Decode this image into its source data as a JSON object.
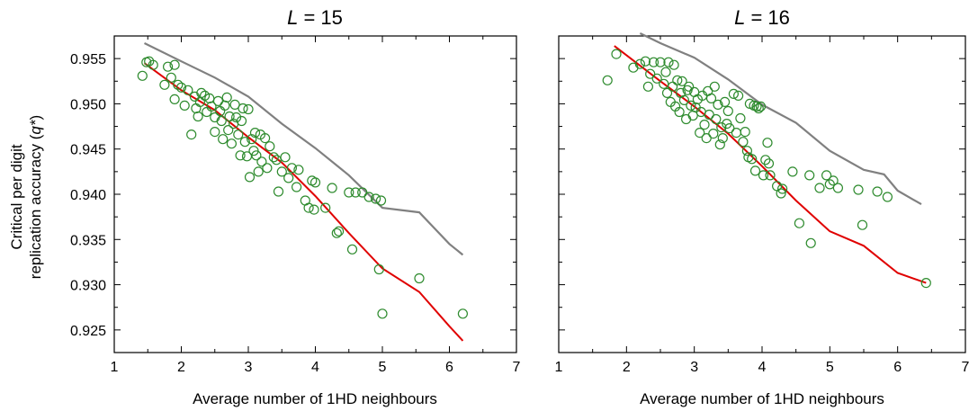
{
  "chart_data": [
    {
      "type": "scatter",
      "title_var": "L",
      "title_rest": " = 15",
      "xlabel": "Average number of 1HD neighbours",
      "ylabel_line1": "Critical per digit",
      "ylabel_line2": "replication accuracy (",
      "ylabel_var": "q*",
      "ylabel_close": ")",
      "xlim": [
        1,
        7
      ],
      "ylim": [
        0.9225,
        0.9575
      ],
      "x_ticks": [
        "1",
        "2",
        "3",
        "4",
        "5",
        "6",
        "7"
      ],
      "y_ticks": [
        "0.925",
        "0.930",
        "0.935",
        "0.940",
        "0.945",
        "0.950",
        "0.955"
      ],
      "colors": {
        "points": "#2e8b2e",
        "fit": "#e00000",
        "bound": "#808080"
      },
      "series": [
        {
          "marker": "open-circle",
          "points": [
            [
              1.42,
              0.9531
            ],
            [
              1.48,
              0.9546
            ],
            [
              1.52,
              0.9547
            ],
            [
              1.58,
              0.9543
            ],
            [
              1.75,
              0.9521
            ],
            [
              1.8,
              0.9541
            ],
            [
              1.85,
              0.9529
            ],
            [
              1.9,
              0.9543
            ],
            [
              1.95,
              0.9521
            ],
            [
              1.9,
              0.9505
            ],
            [
              2.0,
              0.9518
            ],
            [
              2.05,
              0.9498
            ],
            [
              2.1,
              0.9515
            ],
            [
              2.15,
              0.9466
            ],
            [
              2.2,
              0.9508
            ],
            [
              2.22,
              0.9495
            ],
            [
              2.25,
              0.9486
            ],
            [
              2.28,
              0.9502
            ],
            [
              2.3,
              0.9512
            ],
            [
              2.35,
              0.9509
            ],
            [
              2.38,
              0.9491
            ],
            [
              2.42,
              0.9506
            ],
            [
              2.45,
              0.9497
            ],
            [
              2.5,
              0.9485
            ],
            [
              2.5,
              0.9469
            ],
            [
              2.55,
              0.9503
            ],
            [
              2.58,
              0.9492
            ],
            [
              2.6,
              0.9481
            ],
            [
              2.62,
              0.9461
            ],
            [
              2.65,
              0.9498
            ],
            [
              2.68,
              0.9507
            ],
            [
              2.7,
              0.9471
            ],
            [
              2.72,
              0.9486
            ],
            [
              2.75,
              0.9456
            ],
            [
              2.78,
              0.9478
            ],
            [
              2.8,
              0.9499
            ],
            [
              2.82,
              0.9485
            ],
            [
              2.85,
              0.9466
            ],
            [
              2.88,
              0.9443
            ],
            [
              2.9,
              0.9481
            ],
            [
              2.92,
              0.9495
            ],
            [
              2.95,
              0.9458
            ],
            [
              2.98,
              0.9442
            ],
            [
              3.0,
              0.9494
            ],
            [
              3.02,
              0.9419
            ],
            [
              3.05,
              0.9461
            ],
            [
              3.08,
              0.9448
            ],
            [
              3.1,
              0.9468
            ],
            [
              3.12,
              0.9443
            ],
            [
              3.15,
              0.9425
            ],
            [
              3.18,
              0.9466
            ],
            [
              3.2,
              0.9436
            ],
            [
              3.25,
              0.9462
            ],
            [
              3.28,
              0.9429
            ],
            [
              3.32,
              0.9453
            ],
            [
              3.38,
              0.9441
            ],
            [
              3.42,
              0.9438
            ],
            [
              3.45,
              0.9403
            ],
            [
              3.5,
              0.9425
            ],
            [
              3.55,
              0.9441
            ],
            [
              3.6,
              0.9418
            ],
            [
              3.65,
              0.9429
            ],
            [
              3.72,
              0.9408
            ],
            [
              3.75,
              0.9427
            ],
            [
              3.85,
              0.9393
            ],
            [
              3.9,
              0.9385
            ],
            [
              3.95,
              0.9415
            ],
            [
              3.98,
              0.9383
            ],
            [
              4.0,
              0.9413
            ],
            [
              4.15,
              0.9385
            ],
            [
              4.25,
              0.9407
            ],
            [
              4.32,
              0.9357
            ],
            [
              4.35,
              0.9359
            ],
            [
              4.5,
              0.9402
            ],
            [
              4.55,
              0.9339
            ],
            [
              4.6,
              0.9402
            ],
            [
              4.7,
              0.9402
            ],
            [
              4.8,
              0.9397
            ],
            [
              4.9,
              0.9395
            ],
            [
              4.95,
              0.9317
            ],
            [
              4.98,
              0.9393
            ],
            [
              5.0,
              0.9268
            ],
            [
              5.55,
              0.9307
            ],
            [
              6.2,
              0.9268
            ]
          ]
        },
        {
          "marker": "line",
          "points": [
            [
              1.45,
              0.9545
            ],
            [
              2.0,
              0.9515
            ],
            [
              2.5,
              0.9493
            ],
            [
              3.0,
              0.9463
            ],
            [
              3.5,
              0.9435
            ],
            [
              4.0,
              0.9398
            ],
            [
              4.5,
              0.9357
            ],
            [
              5.0,
              0.9318
            ],
            [
              5.55,
              0.9292
            ],
            [
              6.0,
              0.9254
            ],
            [
              6.2,
              0.9238
            ]
          ]
        },
        {
          "marker": "line",
          "points": [
            [
              1.45,
              0.9567
            ],
            [
              2.0,
              0.9547
            ],
            [
              2.5,
              0.9529
            ],
            [
              3.0,
              0.9508
            ],
            [
              3.5,
              0.9478
            ],
            [
              4.0,
              0.9451
            ],
            [
              4.5,
              0.9421
            ],
            [
              5.0,
              0.9385
            ],
            [
              5.55,
              0.938
            ],
            [
              6.0,
              0.9345
            ],
            [
              6.2,
              0.9333
            ]
          ]
        }
      ]
    },
    {
      "type": "scatter",
      "title_var": "L",
      "title_rest": " = 16",
      "xlabel": "Average number of 1HD neighbours",
      "xlim": [
        1,
        7
      ],
      "ylim": [
        0.9225,
        0.9575
      ],
      "x_ticks": [
        "1",
        "2",
        "3",
        "4",
        "5",
        "6",
        "7"
      ],
      "colors": {
        "points": "#2e8b2e",
        "fit": "#e00000",
        "bound": "#808080"
      },
      "series": [
        {
          "marker": "open-circle",
          "points": [
            [
              1.72,
              0.9526
            ],
            [
              1.85,
              0.9555
            ],
            [
              2.1,
              0.954
            ],
            [
              2.2,
              0.9544
            ],
            [
              2.28,
              0.9547
            ],
            [
              2.32,
              0.9519
            ],
            [
              2.35,
              0.9533
            ],
            [
              2.4,
              0.9546
            ],
            [
              2.45,
              0.9528
            ],
            [
              2.5,
              0.9546
            ],
            [
              2.55,
              0.9522
            ],
            [
              2.58,
              0.9535
            ],
            [
              2.6,
              0.9512
            ],
            [
              2.62,
              0.9546
            ],
            [
              2.65,
              0.9502
            ],
            [
              2.68,
              0.9519
            ],
            [
              2.7,
              0.9543
            ],
            [
              2.72,
              0.9497
            ],
            [
              2.75,
              0.9526
            ],
            [
              2.78,
              0.9491
            ],
            [
              2.8,
              0.9512
            ],
            [
              2.82,
              0.9525
            ],
            [
              2.85,
              0.9504
            ],
            [
              2.88,
              0.9483
            ],
            [
              2.9,
              0.9515
            ],
            [
              2.92,
              0.9519
            ],
            [
              2.95,
              0.9498
            ],
            [
              2.98,
              0.9487
            ],
            [
              3.0,
              0.9513
            ],
            [
              3.02,
              0.9496
            ],
            [
              3.05,
              0.9505
            ],
            [
              3.08,
              0.9468
            ],
            [
              3.1,
              0.9491
            ],
            [
              3.12,
              0.9509
            ],
            [
              3.15,
              0.9477
            ],
            [
              3.18,
              0.9462
            ],
            [
              3.2,
              0.9514
            ],
            [
              3.22,
              0.9488
            ],
            [
              3.25,
              0.9506
            ],
            [
              3.28,
              0.9467
            ],
            [
              3.3,
              0.9519
            ],
            [
              3.32,
              0.9483
            ],
            [
              3.35,
              0.9499
            ],
            [
              3.38,
              0.9455
            ],
            [
              3.4,
              0.9474
            ],
            [
              3.42,
              0.9462
            ],
            [
              3.45,
              0.9502
            ],
            [
              3.48,
              0.9478
            ],
            [
              3.5,
              0.9492
            ],
            [
              3.52,
              0.9473
            ],
            [
              3.58,
              0.9511
            ],
            [
              3.62,
              0.9468
            ],
            [
              3.65,
              0.9509
            ],
            [
              3.68,
              0.9484
            ],
            [
              3.72,
              0.9458
            ],
            [
              3.75,
              0.9469
            ],
            [
              3.78,
              0.9448
            ],
            [
              3.8,
              0.9441
            ],
            [
              3.82,
              0.95
            ],
            [
              3.85,
              0.9439
            ],
            [
              3.88,
              0.9498
            ],
            [
              3.9,
              0.9426
            ],
            [
              3.92,
              0.9497
            ],
            [
              3.95,
              0.9495
            ],
            [
              3.98,
              0.9497
            ],
            [
              4.02,
              0.9421
            ],
            [
              4.05,
              0.9438
            ],
            [
              4.08,
              0.9457
            ],
            [
              4.1,
              0.9434
            ],
            [
              4.12,
              0.9421
            ],
            [
              4.22,
              0.9409
            ],
            [
              4.28,
              0.9401
            ],
            [
              4.3,
              0.9406
            ],
            [
              4.45,
              0.9425
            ],
            [
              4.55,
              0.9368
            ],
            [
              4.7,
              0.9421
            ],
            [
              4.72,
              0.9346
            ],
            [
              4.85,
              0.9407
            ],
            [
              4.95,
              0.9421
            ],
            [
              5.0,
              0.9411
            ],
            [
              5.05,
              0.9415
            ],
            [
              5.12,
              0.9407
            ],
            [
              5.42,
              0.9405
            ],
            [
              5.48,
              0.9366
            ],
            [
              5.7,
              0.9403
            ],
            [
              5.85,
              0.9397
            ],
            [
              6.42,
              0.9302
            ]
          ]
        },
        {
          "marker": "line",
          "points": [
            [
              1.82,
              0.9564
            ],
            [
              2.5,
              0.9525
            ],
            [
              3.0,
              0.9497
            ],
            [
              3.5,
              0.9467
            ],
            [
              4.0,
              0.9431
            ],
            [
              4.5,
              0.9393
            ],
            [
              5.0,
              0.9359
            ],
            [
              5.5,
              0.9343
            ],
            [
              6.0,
              0.9313
            ],
            [
              6.42,
              0.9302
            ]
          ]
        },
        {
          "marker": "line",
          "points": [
            [
              2.2,
              0.9578
            ],
            [
              2.5,
              0.9567
            ],
            [
              3.0,
              0.9551
            ],
            [
              3.5,
              0.9527
            ],
            [
              4.0,
              0.9499
            ],
            [
              4.5,
              0.9479
            ],
            [
              5.0,
              0.9448
            ],
            [
              5.5,
              0.9427
            ],
            [
              5.8,
              0.9422
            ],
            [
              6.0,
              0.9404
            ],
            [
              6.35,
              0.9389
            ]
          ]
        }
      ]
    }
  ]
}
